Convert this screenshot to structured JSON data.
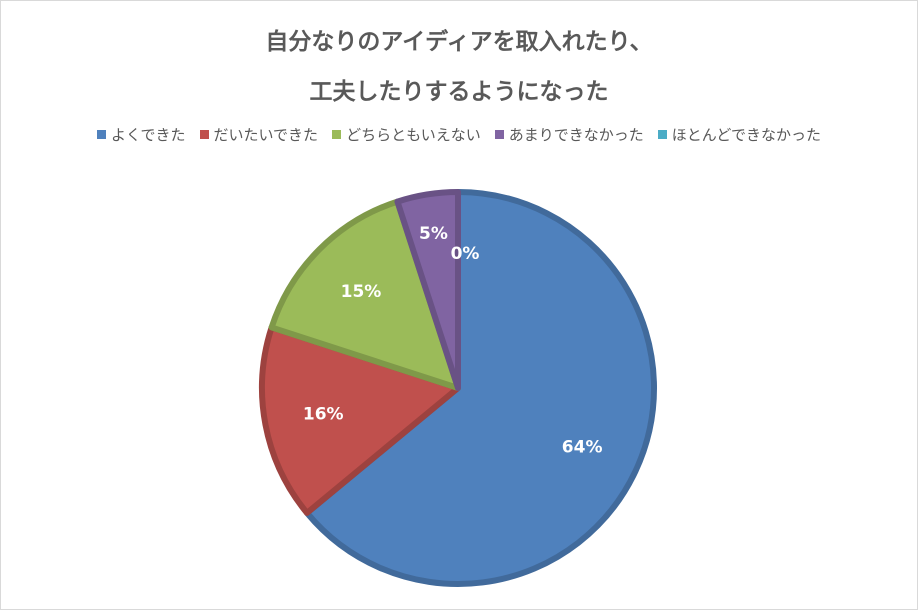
{
  "chart_data": {
    "type": "pie",
    "title_lines": [
      "自分なりのアイディアを取入れたり、",
      "工夫したりするようになった"
    ],
    "categories": [
      "よくできた",
      "だいたいできた",
      "どちらともいえない",
      "あまりできなかった",
      "ほとんどできなかった"
    ],
    "values": [
      64,
      16,
      15,
      5,
      0
    ],
    "labels": [
      "64%",
      "16%",
      "15%",
      "5%",
      "0%"
    ],
    "colors": [
      "#4f81bd",
      "#c0504d",
      "#9bbb59",
      "#8064a2",
      "#4bacc6"
    ],
    "legend_position": "top",
    "start_angle": "12 o'clock, clockwise"
  }
}
